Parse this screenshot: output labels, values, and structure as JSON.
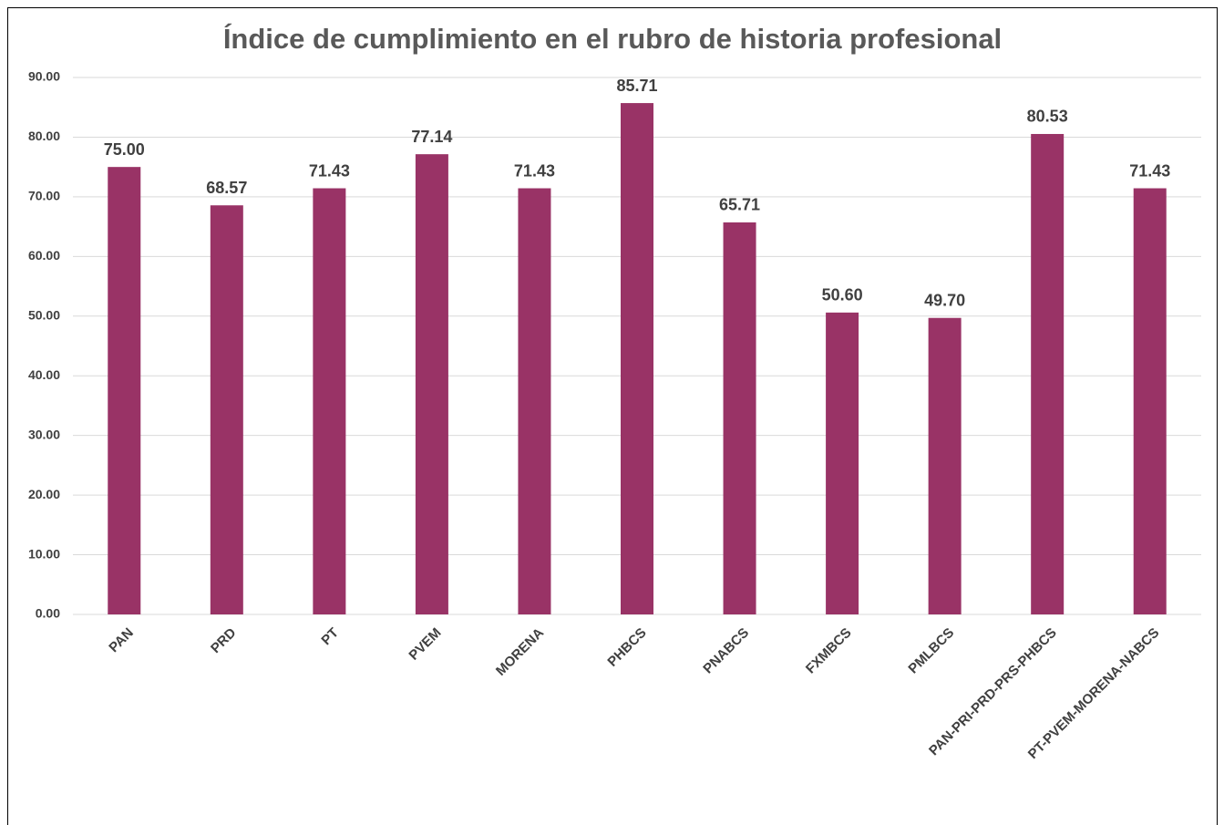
{
  "chart_data": {
    "type": "bar",
    "title": "Índice de cumplimiento en el rubro de historia profesional",
    "categories": [
      "PAN",
      "PRD",
      "PT",
      "PVEM",
      "MORENA",
      "PHBCS",
      "PNABCS",
      "FXMBCS",
      "PMLBCS",
      "PAN-PRI-PRD-PRS-PHBCS",
      "PT-PVEM-MORENA-NABCS"
    ],
    "values": [
      75,
      68.57,
      71.43,
      77.14,
      71.43,
      85.71,
      65.71,
      50.6,
      49.7,
      80.53,
      71.43
    ],
    "value_labels": [
      "75.00",
      "68.57",
      "71.43",
      "77.14",
      "71.43",
      "85.71",
      "65.71",
      "50.60",
      "49.70",
      "80.53",
      "71.43"
    ],
    "color": "#993366",
    "ylim": [
      0,
      90
    ],
    "yticks": [
      {
        "value": 0,
        "label": "0.00"
      },
      {
        "value": 10,
        "label": "10.00"
      },
      {
        "value": 20,
        "label": "20.00"
      },
      {
        "value": 30,
        "label": "30.00"
      },
      {
        "value": 40,
        "label": "40.00"
      },
      {
        "value": 50,
        "label": "50.00"
      },
      {
        "value": 60,
        "label": "60.00"
      },
      {
        "value": 70,
        "label": "70.00"
      },
      {
        "value": 80,
        "label": "80.00"
      },
      {
        "value": 90,
        "label": "90.00"
      }
    ],
    "grid": true
  }
}
